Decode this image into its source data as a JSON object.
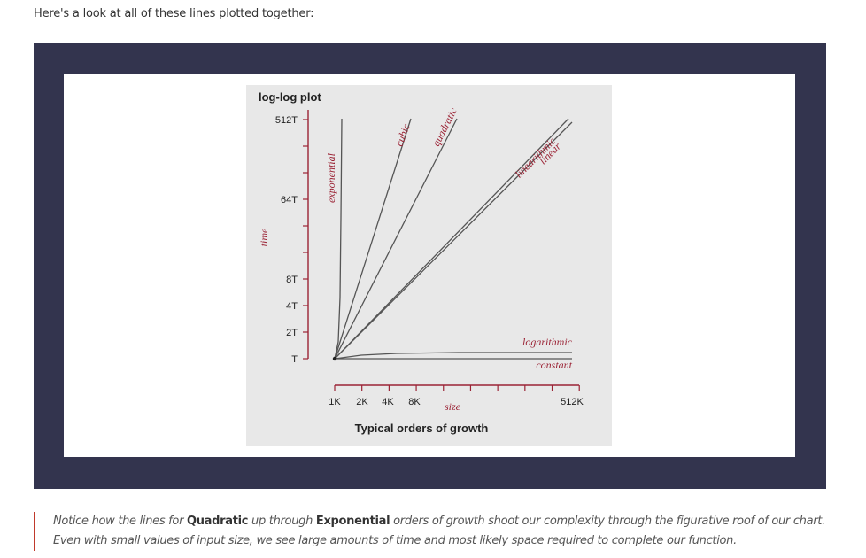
{
  "intro_text": "Here's a look at all of these lines plotted together:",
  "chart_data": {
    "type": "line",
    "title": "log-log plot",
    "xlabel": "size",
    "ylabel": "time",
    "caption": "Typical orders of growth",
    "x_scale": "log",
    "y_scale": "log",
    "x_tick_labels": [
      "1K",
      "2K",
      "4K",
      "8K",
      "512K"
    ],
    "y_tick_labels": [
      "T",
      "2T",
      "4T",
      "8T",
      "64T",
      "512T"
    ],
    "series": [
      {
        "name": "constant",
        "x": [
          1,
          2,
          4,
          8,
          512
        ],
        "y": [
          1,
          1,
          1,
          1,
          1
        ]
      },
      {
        "name": "logarithmic",
        "x": [
          1,
          2,
          4,
          8,
          512
        ],
        "y": [
          1,
          1.1,
          1.2,
          1.3,
          1.9
        ]
      },
      {
        "name": "linear",
        "x": [
          1,
          2,
          4,
          8,
          512
        ],
        "y": [
          1,
          2,
          4,
          8,
          512
        ]
      },
      {
        "name": "linearithmic",
        "x": [
          1,
          2,
          4,
          8,
          512
        ],
        "y": [
          1,
          2.2,
          4.8,
          10.7,
          900
        ]
      },
      {
        "name": "quadratic",
        "x": [
          1,
          2,
          4,
          8,
          32
        ],
        "y": [
          1,
          4,
          16,
          64,
          1024
        ]
      },
      {
        "name": "cubic",
        "x": [
          1,
          2,
          4,
          8,
          10
        ],
        "y": [
          1,
          8,
          64,
          512,
          1000
        ]
      },
      {
        "name": "exponential",
        "x": [
          1,
          1.05,
          1.1,
          1.2,
          1.3
        ],
        "y": [
          1,
          4,
          60,
          600,
          1000
        ]
      }
    ],
    "colors": {
      "label": "#9b2335",
      "axis": "#9b2335",
      "line": "#555555",
      "background": "#e8e8e8"
    }
  },
  "note": {
    "p1": "Notice how the lines for ",
    "b1": "Quadratic",
    "p2": " up through ",
    "b2": "Exponential",
    "p3": " orders of growth shoot our complexity through the figurative roof of our chart. Even with small values of input size, we see large amounts of time and most likely space required to complete our function."
  }
}
